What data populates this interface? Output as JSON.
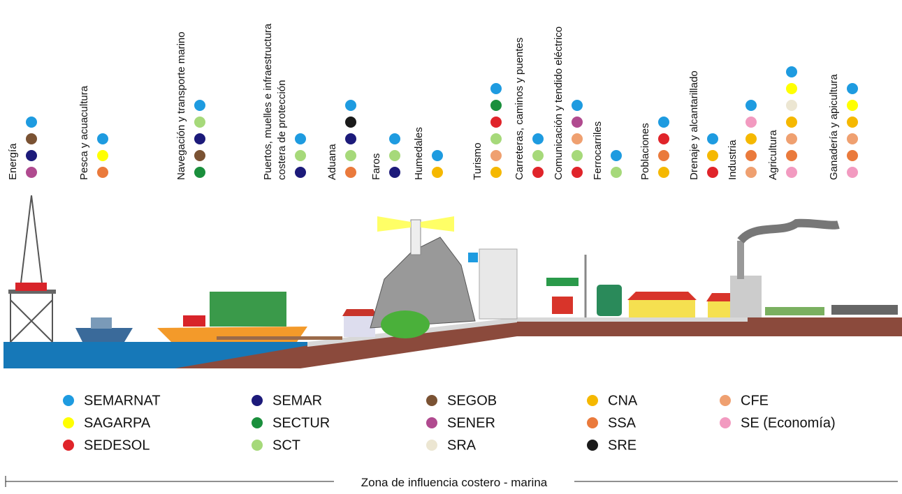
{
  "activities": [
    {
      "lines": [
        "Energía"
      ],
      "agencies": [
        "SEMARNAT",
        "SEGOB",
        "SEMAR",
        "SENER"
      ]
    },
    {
      "lines": [
        "Pesca y acuacultura"
      ],
      "agencies": [
        "SEMARNAT",
        "SAGARPA",
        "SSA"
      ]
    },
    {
      "lines": [
        "Navegación y transporte marino"
      ],
      "agencies": [
        "SEMARNAT",
        "SCT",
        "SEMAR",
        "SEGOB",
        "SECTUR"
      ]
    },
    {
      "lines": [
        "Puertos, muelles e infraestructura",
        "costera de protección"
      ],
      "agencies": [
        "SEMARNAT",
        "SCT",
        "SEMAR"
      ]
    },
    {
      "lines": [
        "Aduana"
      ],
      "agencies": [
        "SEMARNAT",
        "SRE",
        "SEMAR",
        "SCT",
        "SSA"
      ]
    },
    {
      "lines": [
        "Faros"
      ],
      "agencies": [
        "SEMARNAT",
        "SCT",
        "SEMAR"
      ]
    },
    {
      "lines": [
        "Humedales"
      ],
      "agencies": [
        "SEMARNAT",
        "CNA"
      ]
    },
    {
      "lines": [
        "Turismo"
      ],
      "agencies": [
        "SEMARNAT",
        "SECTUR",
        "SEDESOL",
        "SCT",
        "CFE",
        "CNA"
      ]
    },
    {
      "lines": [
        "Carreteras, caminos y puentes"
      ],
      "agencies": [
        "SEMARNAT",
        "SCT",
        "SEDESOL"
      ]
    },
    {
      "lines": [
        "Comunicación y tendido eléctrico"
      ],
      "agencies": [
        "SEMARNAT",
        "SENER",
        "CFE",
        "SCT",
        "SEDESOL"
      ]
    },
    {
      "lines": [
        "Ferrocarriles"
      ],
      "agencies": [
        "SEMARNAT",
        "SCT"
      ]
    },
    {
      "lines": [
        "Poblaciones"
      ],
      "agencies": [
        "SEMARNAT",
        "SEDESOL",
        "SSA",
        "CNA"
      ]
    },
    {
      "lines": [
        "Drenaje y alcantarillado"
      ],
      "agencies": [
        "SEMARNAT",
        "CNA",
        "SEDESOL"
      ]
    },
    {
      "lines": [
        "Industria"
      ],
      "agencies": [
        "SEMARNAT",
        "SE (Economía)",
        "CNA",
        "SSA",
        "CFE"
      ]
    },
    {
      "lines": [
        "Agricultura"
      ],
      "agencies": [
        "SEMARNAT",
        "SAGARPA",
        "SRA",
        "CNA",
        "CFE",
        "SSA",
        "SE (Economía)"
      ]
    },
    {
      "lines": [
        "Ganadería y apicultura"
      ],
      "agencies": [
        "SEMARNAT",
        "SAGARPA",
        "CNA",
        "CFE",
        "SSA",
        "SE (Economía)"
      ]
    }
  ],
  "legend": [
    [
      {
        "name": "SEMARNAT",
        "color": "#1e9be0"
      },
      {
        "name": "SAGARPA",
        "color": "#ffff00"
      },
      {
        "name": "SEDESOL",
        "color": "#e0242a"
      }
    ],
    [
      {
        "name": "SEMAR",
        "color": "#1c1a7a"
      },
      {
        "name": "SECTUR",
        "color": "#1a8f3c"
      },
      {
        "name": "SCT",
        "color": "#a6d97a"
      }
    ],
    [
      {
        "name": "SEGOB",
        "color": "#7a5233"
      },
      {
        "name": "SENER",
        "color": "#b04a8f"
      },
      {
        "name": "SRA",
        "color": "#ece6d2"
      }
    ],
    [
      {
        "name": "CNA",
        "color": "#f5b800"
      },
      {
        "name": "SSA",
        "color": "#ea7a3c"
      },
      {
        "name": "SRE",
        "color": "#1a1a1a"
      }
    ],
    [
      {
        "name": "CFE",
        "color": "#efa070"
      },
      {
        "name": "SE (Economía)",
        "color": "#f29ac0"
      }
    ]
  ],
  "footer": "Zona de influencia costero - marina"
}
